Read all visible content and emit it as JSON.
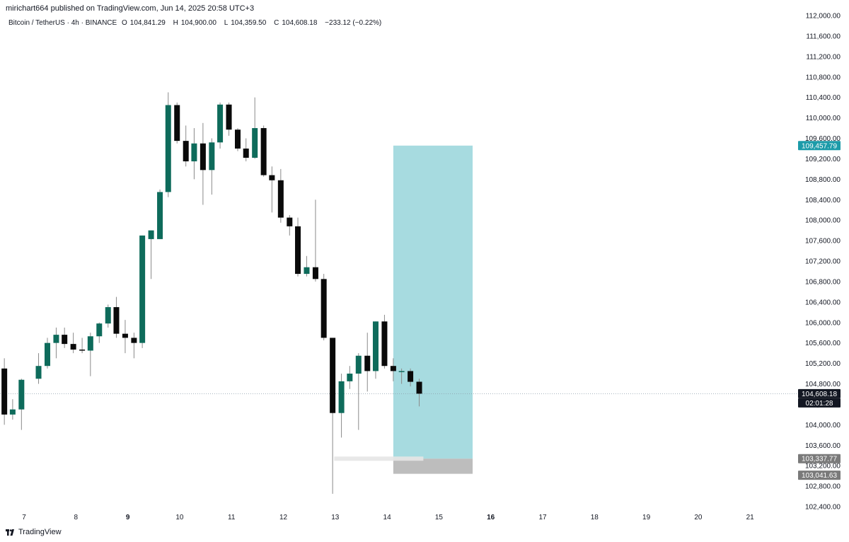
{
  "header": {
    "published": "mirichart664 published on TradingView.com, Jun 14, 2025 20:58 UTC+3",
    "symbol": "Bitcoin / TetherUS · 4h · BINANCE",
    "o_label": "O",
    "o_value": "104,841.29",
    "h_label": "H",
    "h_value": "104,900.00",
    "l_label": "L",
    "l_value": "104,359.50",
    "c_label": "C",
    "c_value": "104,608.18",
    "change": "−233.12 (−0.22%)"
  },
  "footer": {
    "brand": "TradingView"
  },
  "colors": {
    "up": "#0e6b5b",
    "down": "#0a0a0a",
    "projection_target": "#a7dbe0",
    "projection_stop": "#bdbdbd",
    "target_label_bg": "#1c9ba9",
    "price_label_bg": "#131722",
    "stop_label_bg": "#7a7a7a"
  },
  "chart_data": {
    "type": "candlestick",
    "timeframe": "4h",
    "ylim": [
      102300,
      112100
    ],
    "y_ticks": [
      102400,
      102800,
      103200,
      103600,
      104000,
      104400,
      104800,
      105200,
      105600,
      106000,
      106400,
      106800,
      107200,
      107600,
      108000,
      108400,
      108800,
      109200,
      109600,
      110000,
      110400,
      110800,
      111200,
      111600,
      112000
    ],
    "y_tick_labels": [
      "102,400.00",
      "102,800.00",
      "103,200.00",
      "103,600.00",
      "104,000.00",
      "104,400.00",
      "104,800.00",
      "105,200.00",
      "105,600.00",
      "106,000.00",
      "106,400.00",
      "106,800.00",
      "107,200.00",
      "107,600.00",
      "108,000.00",
      "108,400.00",
      "108,800.00",
      "109,200.00",
      "109,600.00",
      "110,000.00",
      "110,400.00",
      "110,800.00",
      "111,200.00",
      "111,600.00",
      "112,000.00"
    ],
    "x_ticks": [
      {
        "label": "7",
        "day": 7,
        "bold": false
      },
      {
        "label": "8",
        "day": 8,
        "bold": false
      },
      {
        "label": "9",
        "day": 9,
        "bold": true
      },
      {
        "label": "10",
        "day": 10,
        "bold": false
      },
      {
        "label": "11",
        "day": 11,
        "bold": false
      },
      {
        "label": "12",
        "day": 12,
        "bold": false
      },
      {
        "label": "13",
        "day": 13,
        "bold": false
      },
      {
        "label": "14",
        "day": 14,
        "bold": false
      },
      {
        "label": "15",
        "day": 15,
        "bold": false
      },
      {
        "label": "16",
        "day": 16,
        "bold": true
      },
      {
        "label": "17",
        "day": 17,
        "bold": false
      },
      {
        "label": "18",
        "day": 18,
        "bold": false
      },
      {
        "label": "19",
        "day": 19,
        "bold": false
      },
      {
        "label": "20",
        "day": 20,
        "bold": false
      },
      {
        "label": "21",
        "day": 21,
        "bold": false
      }
    ],
    "candles": [
      {
        "day": 6.62,
        "o": 105100,
        "h": 105300,
        "l": 104000,
        "c": 104200
      },
      {
        "day": 6.78,
        "o": 104200,
        "h": 104500,
        "l": 104100,
        "c": 104300
      },
      {
        "day": 6.95,
        "o": 104300,
        "h": 104900,
        "l": 103900,
        "c": 104880
      },
      {
        "day": 7.28,
        "o": 104900,
        "h": 105400,
        "l": 104800,
        "c": 105150
      },
      {
        "day": 7.45,
        "o": 105150,
        "h": 105700,
        "l": 105100,
        "c": 105600
      },
      {
        "day": 7.62,
        "o": 105600,
        "h": 105900,
        "l": 105300,
        "c": 105760
      },
      {
        "day": 7.78,
        "o": 105760,
        "h": 105900,
        "l": 105500,
        "c": 105580
      },
      {
        "day": 7.95,
        "o": 105580,
        "h": 105800,
        "l": 105400,
        "c": 105470
      },
      {
        "day": 8.12,
        "o": 105470,
        "h": 105700,
        "l": 105400,
        "c": 105450
      },
      {
        "day": 8.28,
        "o": 105450,
        "h": 105800,
        "l": 104950,
        "c": 105730
      },
      {
        "day": 8.45,
        "o": 105730,
        "h": 106000,
        "l": 105600,
        "c": 105980
      },
      {
        "day": 8.62,
        "o": 105980,
        "h": 106350,
        "l": 105900,
        "c": 106300
      },
      {
        "day": 8.78,
        "o": 106300,
        "h": 106500,
        "l": 105700,
        "c": 105780
      },
      {
        "day": 8.95,
        "o": 105780,
        "h": 106050,
        "l": 105400,
        "c": 105700
      },
      {
        "day": 9.12,
        "o": 105700,
        "h": 105800,
        "l": 105300,
        "c": 105600
      },
      {
        "day": 9.28,
        "o": 105600,
        "h": 107700,
        "l": 105500,
        "c": 107700
      },
      {
        "day": 9.45,
        "o": 107630,
        "h": 107800,
        "l": 106850,
        "c": 107800
      },
      {
        "day": 9.62,
        "o": 107630,
        "h": 108600,
        "l": 107630,
        "c": 108550
      },
      {
        "day": 9.78,
        "o": 108550,
        "h": 110500,
        "l": 108450,
        "c": 110250
      },
      {
        "day": 9.95,
        "o": 110250,
        "h": 110300,
        "l": 109500,
        "c": 109550
      },
      {
        "day": 10.12,
        "o": 109550,
        "h": 109850,
        "l": 109050,
        "c": 109150
      },
      {
        "day": 10.28,
        "o": 109150,
        "h": 109800,
        "l": 108800,
        "c": 109500
      },
      {
        "day": 10.45,
        "o": 109500,
        "h": 109900,
        "l": 108300,
        "c": 108980
      },
      {
        "day": 10.62,
        "o": 108980,
        "h": 109600,
        "l": 108500,
        "c": 109520
      },
      {
        "day": 10.78,
        "o": 109520,
        "h": 110300,
        "l": 109400,
        "c": 110260
      },
      {
        "day": 10.95,
        "o": 110260,
        "h": 110300,
        "l": 109650,
        "c": 109770
      },
      {
        "day": 11.12,
        "o": 109770,
        "h": 109800,
        "l": 109350,
        "c": 109400
      },
      {
        "day": 11.28,
        "o": 109400,
        "h": 109600,
        "l": 109150,
        "c": 109220
      },
      {
        "day": 11.45,
        "o": 109220,
        "h": 110400,
        "l": 109200,
        "c": 109800
      },
      {
        "day": 11.62,
        "o": 109800,
        "h": 109850,
        "l": 108850,
        "c": 108880
      },
      {
        "day": 11.78,
        "o": 108880,
        "h": 109050,
        "l": 108150,
        "c": 108780
      },
      {
        "day": 11.95,
        "o": 108780,
        "h": 109000,
        "l": 107950,
        "c": 108050
      },
      {
        "day": 12.12,
        "o": 108050,
        "h": 108100,
        "l": 107700,
        "c": 107880
      },
      {
        "day": 12.28,
        "o": 107880,
        "h": 108050,
        "l": 106900,
        "c": 106950
      },
      {
        "day": 12.45,
        "o": 106950,
        "h": 107300,
        "l": 106900,
        "c": 107080
      },
      {
        "day": 12.62,
        "o": 107080,
        "h": 108400,
        "l": 106800,
        "c": 106850
      },
      {
        "day": 12.78,
        "o": 106850,
        "h": 106950,
        "l": 105650,
        "c": 105700
      },
      {
        "day": 12.95,
        "o": 105700,
        "h": 105700,
        "l": 102650,
        "c": 104230
      },
      {
        "day": 13.12,
        "o": 104230,
        "h": 105000,
        "l": 103750,
        "c": 104850
      },
      {
        "day": 13.28,
        "o": 104850,
        "h": 105150,
        "l": 104700,
        "c": 105000
      },
      {
        "day": 13.45,
        "o": 105000,
        "h": 105400,
        "l": 103900,
        "c": 105350
      },
      {
        "day": 13.62,
        "o": 105350,
        "h": 105800,
        "l": 104650,
        "c": 105050
      },
      {
        "day": 13.78,
        "o": 105050,
        "h": 106020,
        "l": 104900,
        "c": 106020
      },
      {
        "day": 13.95,
        "o": 106020,
        "h": 106150,
        "l": 105100,
        "c": 105150
      },
      {
        "day": 14.12,
        "o": 105150,
        "h": 105300,
        "l": 104850,
        "c": 105050
      },
      {
        "day": 14.28,
        "o": 105050,
        "h": 105100,
        "l": 104800,
        "c": 105050
      },
      {
        "day": 14.45,
        "o": 105050,
        "h": 105100,
        "l": 104750,
        "c": 104840
      },
      {
        "day": 14.62,
        "o": 104841.29,
        "h": 104900.0,
        "l": 104359.5,
        "c": 104608.18
      }
    ],
    "last_price_line": 104608.18,
    "projection": {
      "start_day": 14.12,
      "end_day": 15.65,
      "entry": 103337.77,
      "target": 109457.79,
      "stop": 103041.63
    },
    "price_labels": {
      "target": "109,457.79",
      "last": "104,608.18",
      "countdown": "02:01:28",
      "entry": "103,337.77",
      "stop": "103,041.63"
    }
  }
}
